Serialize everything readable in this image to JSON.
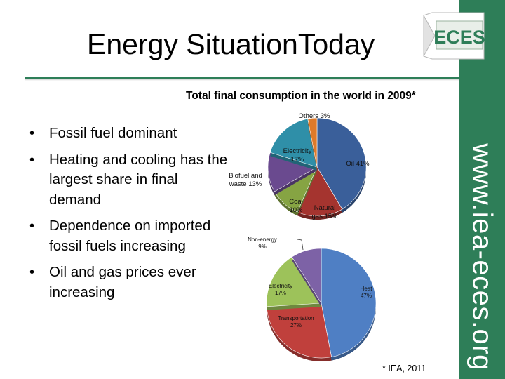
{
  "slide": {
    "title": "Energy SituationToday",
    "logo_text": "ECES",
    "side_url": "www.iea-eces.org",
    "source_note": "* IEA, 2011",
    "colors": {
      "band": "#2e7e58",
      "logo_text": "#2e7e58"
    }
  },
  "bullets": [
    "Fossil fuel dominant",
    "Heating and cooling has the largest share in final demand",
    "Dependence on imported fossil fuels increasing",
    "Oil and gas prices ever increasing"
  ],
  "chart_data": [
    {
      "type": "pie",
      "title": "Total final consumption in the world in 2009*",
      "start_category": "Oil",
      "slices": [
        {
          "label": [
            "Oil 41%"
          ],
          "value": 41,
          "color": "#3a5f9a"
        },
        {
          "label": [
            "Natural",
            "gas 15%"
          ],
          "value": 15,
          "color": "#a5342f"
        },
        {
          "label": [
            "Coal",
            "10%"
          ],
          "value": 10,
          "color": "#86a443"
        },
        {
          "label": [
            "Biofuel and",
            "waste 13%"
          ],
          "value": 13,
          "color": "#6a4a8f"
        },
        {
          "label": [
            "Electricity",
            "17%"
          ],
          "value": 17,
          "color": "#2f8fa8"
        },
        {
          "label": [
            "Others 3%"
          ],
          "value": 3,
          "color": "#de7a2a"
        }
      ]
    },
    {
      "type": "pie",
      "title": "",
      "slices": [
        {
          "label": [
            "Heat",
            "47%"
          ],
          "value": 47,
          "color": "#4f7fc4"
        },
        {
          "label": [
            "Transportation",
            "27%"
          ],
          "value": 27,
          "color": "#c0403c"
        },
        {
          "label": [
            "Electricity",
            "17%"
          ],
          "value": 17,
          "color": "#9dc25a"
        },
        {
          "label": [
            "Non-energy",
            "9%"
          ],
          "value": 9,
          "color": "#7d62a6"
        }
      ]
    }
  ]
}
